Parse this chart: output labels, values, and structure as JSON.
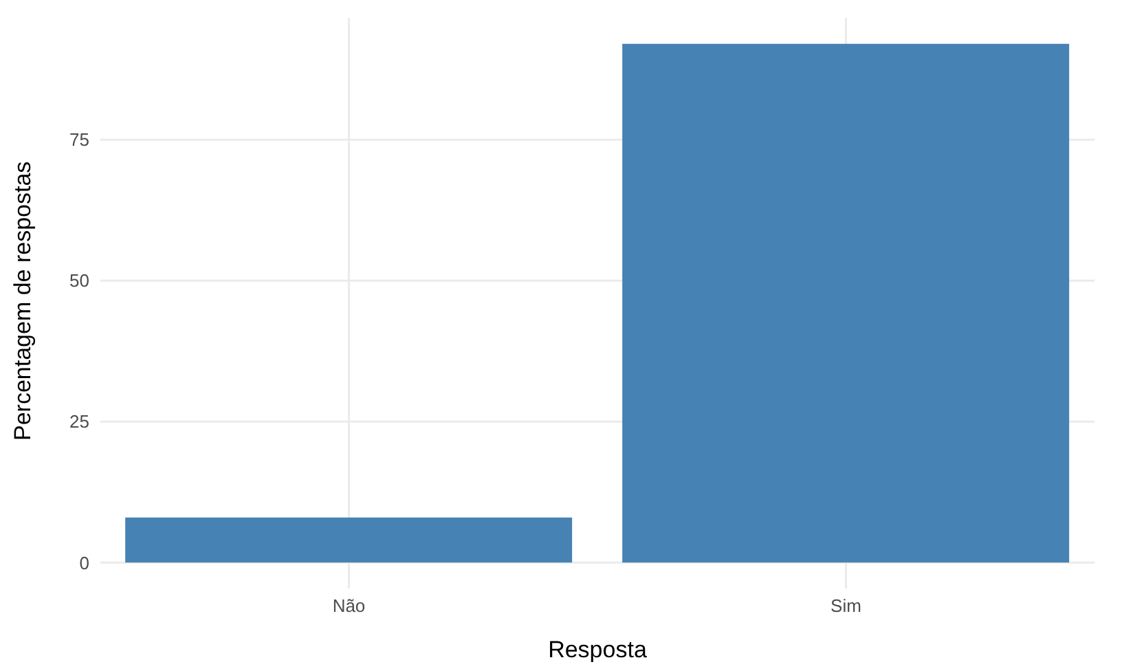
{
  "chart_data": {
    "type": "bar",
    "xlabel": "Resposta",
    "ylabel": "Percentagem de respostas",
    "categories": [
      "Não",
      "Sim"
    ],
    "values": [
      8,
      92
    ],
    "color": "#4682b4",
    "ylim": [
      -4.6,
      96.6
    ],
    "yticks": [
      0,
      25,
      50,
      75
    ],
    "grid": true
  }
}
